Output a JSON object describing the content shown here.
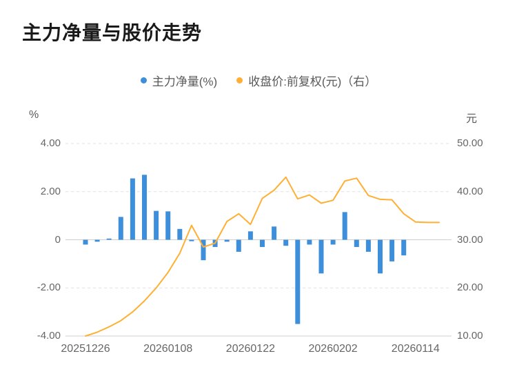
{
  "title": "主力净量与股价走势",
  "legend": {
    "items": [
      {
        "label": "主力净量(%)",
        "color": "#3E8FDB"
      },
      {
        "label": "收盘价:前复权(元)（右）",
        "color": "#FFAF33"
      }
    ]
  },
  "axes": {
    "left_unit": "%",
    "right_unit": "元",
    "left_ticks": [
      "4.00",
      "2.00",
      "0",
      "-2.00",
      "-4.00"
    ],
    "right_ticks": [
      "50.00",
      "40.00",
      "30.00",
      "20.00",
      "10.00"
    ],
    "x_ticks": [
      "20251226",
      "20260108",
      "20260122",
      "20260202",
      "20260114"
    ]
  },
  "chart_data": {
    "type": "bar+line",
    "title": "主力净量与股价走势",
    "n_points": 31,
    "x_tick_labels": [
      "20251226",
      "20260108",
      "20260122",
      "20260202",
      "20260114"
    ],
    "x_tick_indices": [
      0,
      7,
      14,
      21,
      28
    ],
    "left_ylim": [
      -4,
      4
    ],
    "right_ylim": [
      10,
      50
    ],
    "left_grid_values": [
      4,
      2,
      0,
      -2,
      -4
    ],
    "grid": "horizontal dashed, solid zero and bottom lines",
    "legend_position": "top center",
    "series": [
      {
        "name": "主力净量(%)",
        "type": "bar",
        "axis": "left",
        "color": "#3E8FDB",
        "values": [
          -0.2,
          -0.08,
          0.05,
          0.95,
          2.55,
          2.7,
          1.2,
          1.18,
          0.45,
          -0.06,
          -0.85,
          -0.3,
          -0.08,
          -0.5,
          0.35,
          -0.3,
          0.55,
          -0.25,
          -3.5,
          -0.2,
          -1.4,
          -0.2,
          1.15,
          -0.3,
          -0.5,
          -1.4,
          -0.9,
          -0.65,
          null,
          null,
          null
        ]
      },
      {
        "name": "收盘价:前复权(元)（右）",
        "type": "line",
        "axis": "right",
        "color": "#FFAF33",
        "values": [
          10.0,
          10.8,
          11.9,
          13.2,
          15.0,
          17.3,
          20.0,
          23.2,
          27.2,
          33.0,
          28.5,
          29.3,
          33.8,
          35.4,
          33.2,
          38.6,
          40.3,
          43.0,
          38.5,
          39.3,
          37.6,
          38.2,
          42.2,
          42.8,
          39.2,
          38.4,
          38.3,
          35.4,
          33.7,
          33.6,
          33.6
        ]
      }
    ]
  }
}
